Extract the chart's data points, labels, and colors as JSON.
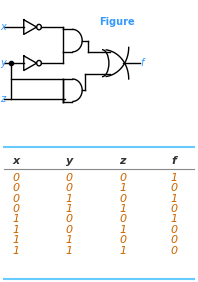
{
  "figure_label": "Figure",
  "table_headers": [
    "x",
    "y",
    "z",
    "f"
  ],
  "table_data": [
    [
      0,
      0,
      0,
      1
    ],
    [
      0,
      0,
      1,
      0
    ],
    [
      0,
      1,
      0,
      1
    ],
    [
      0,
      1,
      1,
      0
    ],
    [
      1,
      0,
      0,
      1
    ],
    [
      1,
      0,
      1,
      0
    ],
    [
      1,
      1,
      0,
      0
    ],
    [
      1,
      1,
      1,
      0
    ]
  ],
  "header_color": "#333333",
  "data_color_xyz": "#cc6600",
  "data_color_f": "#cc6600",
  "line_color_top": "#66ccff",
  "line_color_bottom": "#66ccff",
  "line_color_header": "#888888",
  "label_color": "#3399ff",
  "bg_color": "#ffffff"
}
